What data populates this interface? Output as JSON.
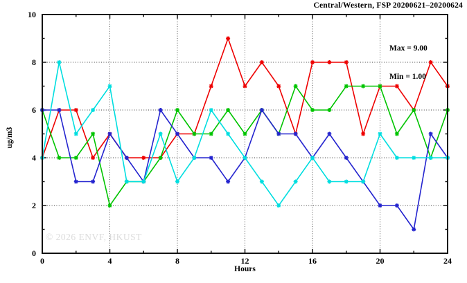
{
  "window": {
    "background": "#ffffff"
  },
  "chart_data": {
    "type": "line",
    "title": "Central/Western, FSP 20200621–20200624",
    "annotation": {
      "max_label": "Max = 9.00",
      "min_label": "Min = 1.00"
    },
    "watermark": "© 2026 ENVF, HKUST",
    "xlabel": "Hours",
    "ylabel": "ug/m3",
    "xlim": [
      0,
      24
    ],
    "ylim": [
      0,
      10
    ],
    "x_major_ticks": [
      0,
      4,
      8,
      12,
      16,
      20,
      24
    ],
    "x_minor_ticks": [
      2,
      6,
      10,
      14,
      18,
      22
    ],
    "y_major_ticks": [
      0,
      2,
      4,
      6,
      8,
      10
    ],
    "y_minor_ticks": [
      1,
      3,
      5,
      7,
      9
    ],
    "x_gridlines": [
      4,
      8,
      12,
      16,
      20
    ],
    "y_gridlines": [
      2,
      4,
      6,
      8
    ],
    "grid": true,
    "legend_position": "none",
    "marker": "asterisk",
    "x": [
      0,
      1,
      2,
      3,
      4,
      5,
      6,
      7,
      8,
      9,
      10,
      11,
      12,
      13,
      14,
      15,
      16,
      17,
      18,
      19,
      20,
      21,
      22,
      23,
      24
    ],
    "series": [
      {
        "name": "series-1-red",
        "color": "#ee0000",
        "values": [
          4,
          6,
          6,
          4,
          5,
          4,
          4,
          4,
          5,
          5,
          7,
          9,
          7,
          8,
          7,
          5,
          8,
          8,
          8,
          5,
          7,
          7,
          6,
          8,
          7
        ]
      },
      {
        "name": "series-2-green",
        "color": "#00c400",
        "values": [
          6,
          4,
          4,
          5,
          2,
          3,
          3,
          4,
          6,
          5,
          5,
          6,
          5,
          6,
          5,
          7,
          6,
          6,
          7,
          7,
          7,
          5,
          6,
          4,
          6
        ]
      },
      {
        "name": "series-3-blue",
        "color": "#2424cf",
        "values": [
          6,
          6,
          3,
          3,
          5,
          4,
          3,
          6,
          5,
          4,
          4,
          3,
          4,
          6,
          5,
          5,
          4,
          5,
          4,
          3,
          2,
          2,
          1,
          5,
          4
        ]
      },
      {
        "name": "series-4-cyan",
        "color": "#00dee0",
        "values": [
          4,
          8,
          5,
          6,
          7,
          3,
          3,
          5,
          3,
          4,
          6,
          5,
          4,
          3,
          2,
          3,
          4,
          3,
          3,
          3,
          5,
          4,
          4,
          4,
          4
        ]
      }
    ],
    "frame_color": "#111111",
    "gridline_color": "#3c3c3c"
  }
}
